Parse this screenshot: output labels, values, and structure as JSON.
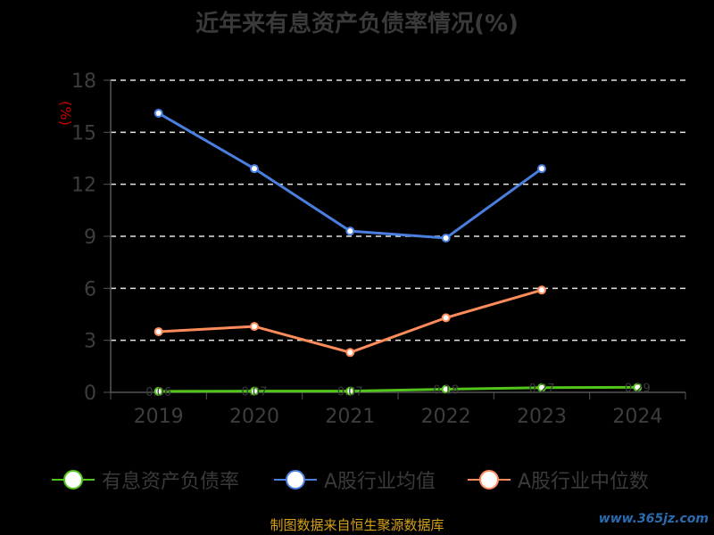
{
  "title": "近年来有息资产负债率情况(%)",
  "source": "制图数据来自恒生聚源数据库",
  "watermark": "www.365jz.com",
  "chart_data": {
    "type": "line",
    "title": "近年来有息资产负债率情况(%)",
    "ylabel": "(%)",
    "xlabel": "",
    "categories": [
      "2019",
      "2020",
      "2021",
      "2022",
      "2023",
      "2024"
    ],
    "ylim": [
      0,
      18
    ],
    "yticks": [
      0,
      3,
      6,
      9,
      12,
      15,
      18
    ],
    "grid": "horizontal-dashed",
    "legend_position": "bottom",
    "series": [
      {
        "name": "有息资产负债率",
        "color": "#52c41a",
        "values": [
          0.06,
          0.07,
          0.07,
          0.18,
          0.27,
          0.29
        ],
        "labels": [
          "0.06",
          "0.07",
          "0.07",
          "0.18",
          "0.27",
          "0.29"
        ]
      },
      {
        "name": "A股行业均值",
        "color": "#4a7fe0",
        "values": [
          16.1,
          12.9,
          9.3,
          8.9,
          12.9,
          null
        ]
      },
      {
        "name": "A股行业中位数",
        "color": "#ff8c5a",
        "values": [
          3.5,
          3.8,
          2.3,
          4.3,
          5.9,
          null
        ]
      }
    ]
  }
}
